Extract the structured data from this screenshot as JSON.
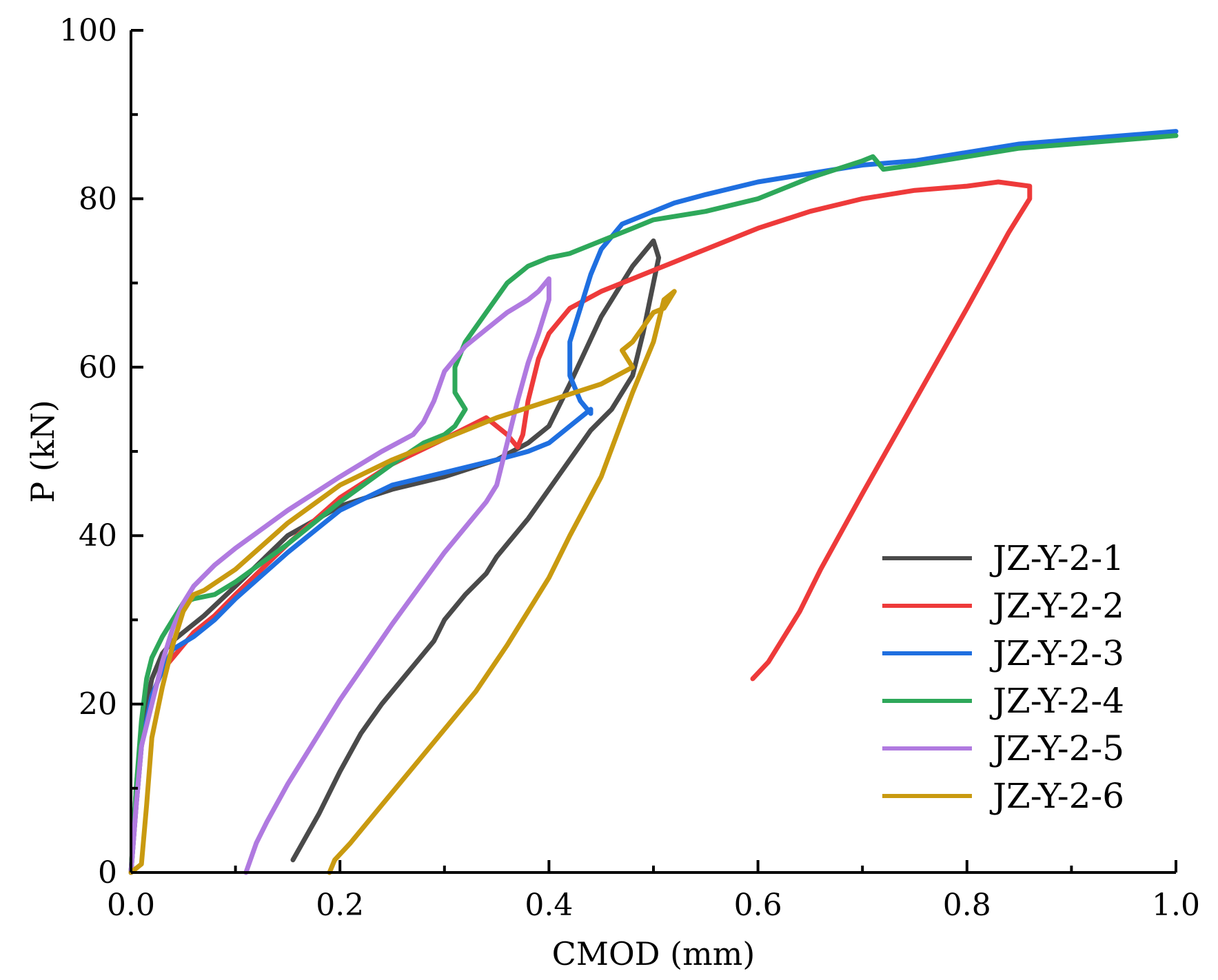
{
  "chart_data": {
    "type": "line",
    "title": "",
    "xlabel": "CMOD (mm)",
    "ylabel": "P (kN)",
    "xlim": [
      0,
      1.0
    ],
    "ylim": [
      0,
      100
    ],
    "xticks": [
      0.0,
      0.2,
      0.4,
      0.6,
      0.8,
      1.0
    ],
    "xtick_labels": [
      "0.0",
      "0.2",
      "0.4",
      "0.6",
      "0.8",
      "1.0"
    ],
    "yticks": [
      0,
      20,
      40,
      60,
      80,
      100
    ],
    "ytick_labels": [
      "0",
      "20",
      "40",
      "60",
      "80",
      "100"
    ],
    "legend_position": "lower-right",
    "series": [
      {
        "name": "JZ-Y-2-1",
        "color": "#4a4a4a",
        "x": [
          0.0,
          0.005,
          0.01,
          0.02,
          0.03,
          0.04,
          0.05,
          0.07,
          0.1,
          0.15,
          0.2,
          0.25,
          0.3,
          0.35,
          0.38,
          0.4,
          0.42,
          0.45,
          0.48,
          0.5,
          0.505,
          0.5,
          0.49,
          0.48,
          0.46,
          0.44,
          0.42,
          0.4,
          0.38,
          0.36,
          0.35,
          0.34,
          0.32,
          0.3,
          0.29,
          0.28,
          0.26,
          0.24,
          0.22,
          0.2,
          0.18,
          0.155
        ],
        "y": [
          0.0,
          10.0,
          17.0,
          23.0,
          26.0,
          27.5,
          28.5,
          30.5,
          34.0,
          40.0,
          43.5,
          45.5,
          47.0,
          49.0,
          51.0,
          53.0,
          58.0,
          66.0,
          72.0,
          75.0,
          73.0,
          70.0,
          64.0,
          59.0,
          55.0,
          52.5,
          49.0,
          45.5,
          42.0,
          39.0,
          37.5,
          35.5,
          33.0,
          30.0,
          27.5,
          26.0,
          23.0,
          20.0,
          16.5,
          12.0,
          7.0,
          1.5
        ]
      },
      {
        "name": "JZ-Y-2-2",
        "color": "#ee3a3a",
        "x": [
          0.0,
          0.005,
          0.01,
          0.02,
          0.03,
          0.05,
          0.06,
          0.08,
          0.1,
          0.15,
          0.2,
          0.25,
          0.3,
          0.34,
          0.36,
          0.37,
          0.375,
          0.38,
          0.39,
          0.4,
          0.42,
          0.45,
          0.48,
          0.5,
          0.52,
          0.55,
          0.6,
          0.65,
          0.7,
          0.75,
          0.8,
          0.83,
          0.86,
          0.86,
          0.84,
          0.8,
          0.75,
          0.7,
          0.66,
          0.65,
          0.64,
          0.63,
          0.62,
          0.61,
          0.595
        ],
        "y": [
          0.0,
          8.0,
          15.0,
          21.0,
          24.0,
          27.0,
          28.5,
          30.5,
          33.0,
          39.0,
          44.5,
          48.5,
          51.5,
          54.0,
          52.0,
          50.5,
          52.0,
          56.0,
          61.0,
          64.0,
          67.0,
          69.0,
          70.5,
          71.5,
          72.5,
          74.0,
          76.5,
          78.5,
          80.0,
          81.0,
          81.5,
          82.0,
          81.5,
          80.0,
          76.0,
          67.0,
          56.0,
          45.0,
          36.0,
          33.5,
          31.0,
          29.0,
          27.0,
          25.0,
          23.0
        ]
      },
      {
        "name": "JZ-Y-2-3",
        "color": "#1f6fe0",
        "x": [
          0.0,
          0.005,
          0.01,
          0.02,
          0.03,
          0.04,
          0.06,
          0.08,
          0.1,
          0.15,
          0.2,
          0.25,
          0.3,
          0.35,
          0.38,
          0.4,
          0.42,
          0.44,
          0.44,
          0.43,
          0.42,
          0.42,
          0.43,
          0.44,
          0.45,
          0.47,
          0.5,
          0.52,
          0.55,
          0.6,
          0.65,
          0.7,
          0.75,
          0.8,
          0.85,
          0.9,
          0.95,
          1.0
        ],
        "y": [
          0.0,
          8.0,
          15.0,
          21.0,
          24.0,
          26.5,
          28.0,
          30.0,
          32.5,
          38.0,
          43.0,
          46.0,
          47.5,
          49.0,
          50.0,
          51.0,
          53.0,
          55.0,
          54.5,
          56.0,
          59.0,
          63.0,
          67.0,
          71.0,
          74.0,
          77.0,
          78.5,
          79.5,
          80.5,
          82.0,
          83.0,
          84.0,
          84.5,
          85.5,
          86.5,
          87.0,
          87.5,
          88.0
        ]
      },
      {
        "name": "JZ-Y-2-4",
        "color": "#2ea85a",
        "x": [
          0.0,
          0.005,
          0.01,
          0.015,
          0.02,
          0.03,
          0.04,
          0.05,
          0.06,
          0.08,
          0.1,
          0.15,
          0.2,
          0.25,
          0.28,
          0.3,
          0.31,
          0.32,
          0.31,
          0.31,
          0.32,
          0.34,
          0.36,
          0.38,
          0.4,
          0.42,
          0.45,
          0.48,
          0.5,
          0.55,
          0.6,
          0.65,
          0.7,
          0.71,
          0.72,
          0.75,
          0.8,
          0.85,
          0.9,
          0.95,
          1.0
        ],
        "y": [
          0.0,
          10.0,
          18.0,
          23.0,
          25.5,
          28.0,
          30.0,
          32.0,
          32.5,
          33.0,
          34.5,
          39.0,
          44.0,
          48.5,
          51.0,
          52.0,
          53.0,
          55.0,
          57.0,
          60.0,
          63.0,
          66.5,
          70.0,
          72.0,
          73.0,
          73.5,
          75.0,
          76.5,
          77.5,
          78.5,
          80.0,
          82.5,
          84.5,
          85.0,
          83.5,
          84.0,
          85.0,
          86.0,
          86.5,
          87.0,
          87.5
        ]
      },
      {
        "name": "JZ-Y-2-5",
        "color": "#b07ae0",
        "x": [
          0.0,
          0.005,
          0.01,
          0.02,
          0.03,
          0.04,
          0.05,
          0.06,
          0.08,
          0.1,
          0.15,
          0.2,
          0.24,
          0.27,
          0.28,
          0.29,
          0.3,
          0.32,
          0.34,
          0.36,
          0.38,
          0.39,
          0.4,
          0.4,
          0.39,
          0.38,
          0.37,
          0.36,
          0.35,
          0.34,
          0.3,
          0.25,
          0.2,
          0.15,
          0.13,
          0.12,
          0.11
        ],
        "y": [
          0.0,
          8.0,
          15.0,
          20.0,
          25.0,
          29.0,
          32.0,
          34.0,
          36.5,
          38.5,
          43.0,
          47.0,
          50.0,
          52.0,
          53.5,
          56.0,
          59.5,
          62.5,
          64.5,
          66.5,
          68.0,
          69.0,
          70.5,
          68.0,
          64.0,
          60.5,
          56.0,
          51.0,
          46.0,
          44.0,
          38.0,
          29.5,
          20.5,
          10.5,
          6.0,
          3.5,
          0.0
        ]
      },
      {
        "name": "JZ-Y-2-6",
        "color": "#c99a10",
        "x": [
          0.0,
          0.01,
          0.015,
          0.02,
          0.03,
          0.04,
          0.05,
          0.06,
          0.07,
          0.1,
          0.15,
          0.2,
          0.25,
          0.3,
          0.35,
          0.4,
          0.45,
          0.48,
          0.47,
          0.48,
          0.5,
          0.51,
          0.52,
          0.51,
          0.5,
          0.48,
          0.45,
          0.42,
          0.4,
          0.38,
          0.37,
          0.36,
          0.33,
          0.3,
          0.27,
          0.24,
          0.21,
          0.195,
          0.19
        ],
        "y": [
          0.0,
          1.0,
          8.0,
          16.0,
          22.0,
          27.0,
          31.0,
          33.0,
          33.5,
          36.0,
          41.5,
          46.0,
          49.0,
          51.5,
          54.0,
          56.0,
          58.0,
          60.0,
          62.0,
          63.0,
          66.5,
          67.0,
          69.0,
          68.0,
          63.0,
          57.0,
          47.0,
          40.0,
          35.0,
          31.0,
          29.0,
          27.0,
          21.5,
          17.0,
          12.5,
          8.0,
          3.5,
          1.5,
          0.0
        ]
      }
    ]
  }
}
